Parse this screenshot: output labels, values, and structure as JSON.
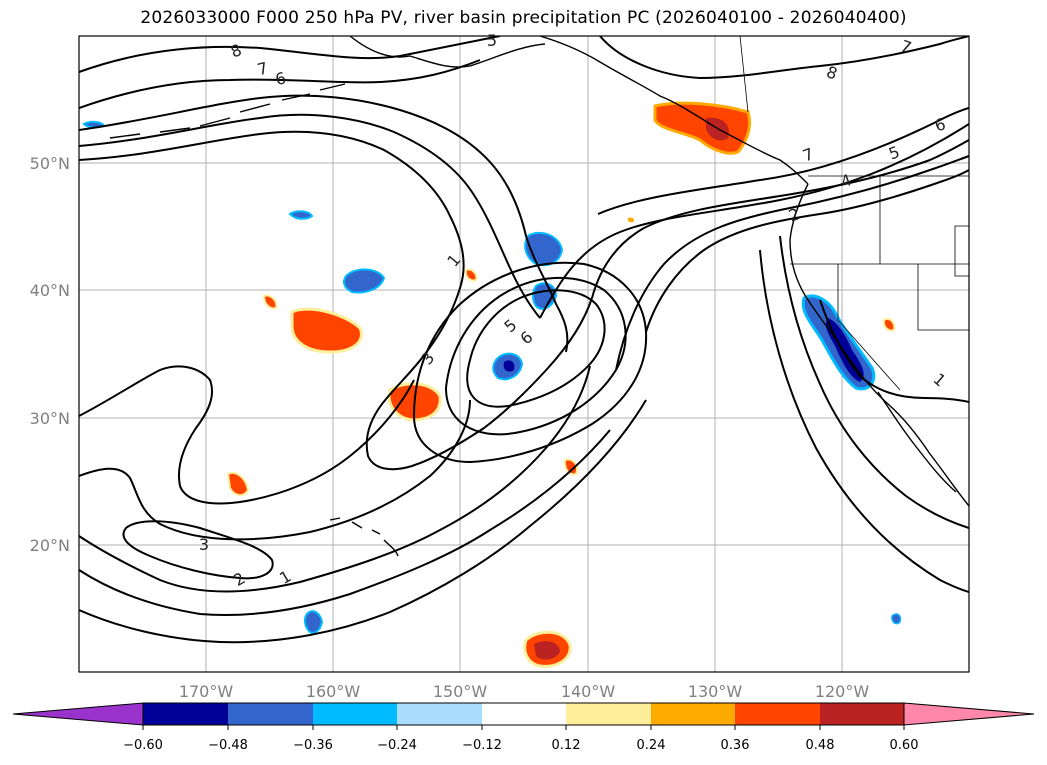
{
  "title": "2026033000 F000 250 hPa PV, river basin precipitation PC (2026040100 - 2026040400)",
  "lat_labels": [
    "50°N",
    "40°N",
    "30°N",
    "20°N"
  ],
  "lon_labels": [
    "170°W",
    "160°W",
    "150°W",
    "140°W",
    "130°W",
    "120°W"
  ],
  "contour_labels": [
    "8",
    "7",
    "6",
    "5",
    "1",
    "3",
    "5",
    "6",
    "3",
    "2",
    "1",
    "8",
    "7",
    "6",
    "5",
    "4",
    "2",
    "7",
    "1"
  ],
  "colorbar": {
    "colors": [
      "#9933cc",
      "#000099",
      "#3366cc",
      "#00bbff",
      "#aaddff",
      "#ffffff",
      "#ffee99",
      "#ffaa00",
      "#ff4400",
      "#bb2222",
      "#ff88aa"
    ],
    "tick_labels": [
      "−0.60",
      "−0.48",
      "−0.36",
      "−0.24",
      "−0.12",
      "0.12",
      "0.24",
      "0.36",
      "0.48",
      "0.60"
    ]
  }
}
